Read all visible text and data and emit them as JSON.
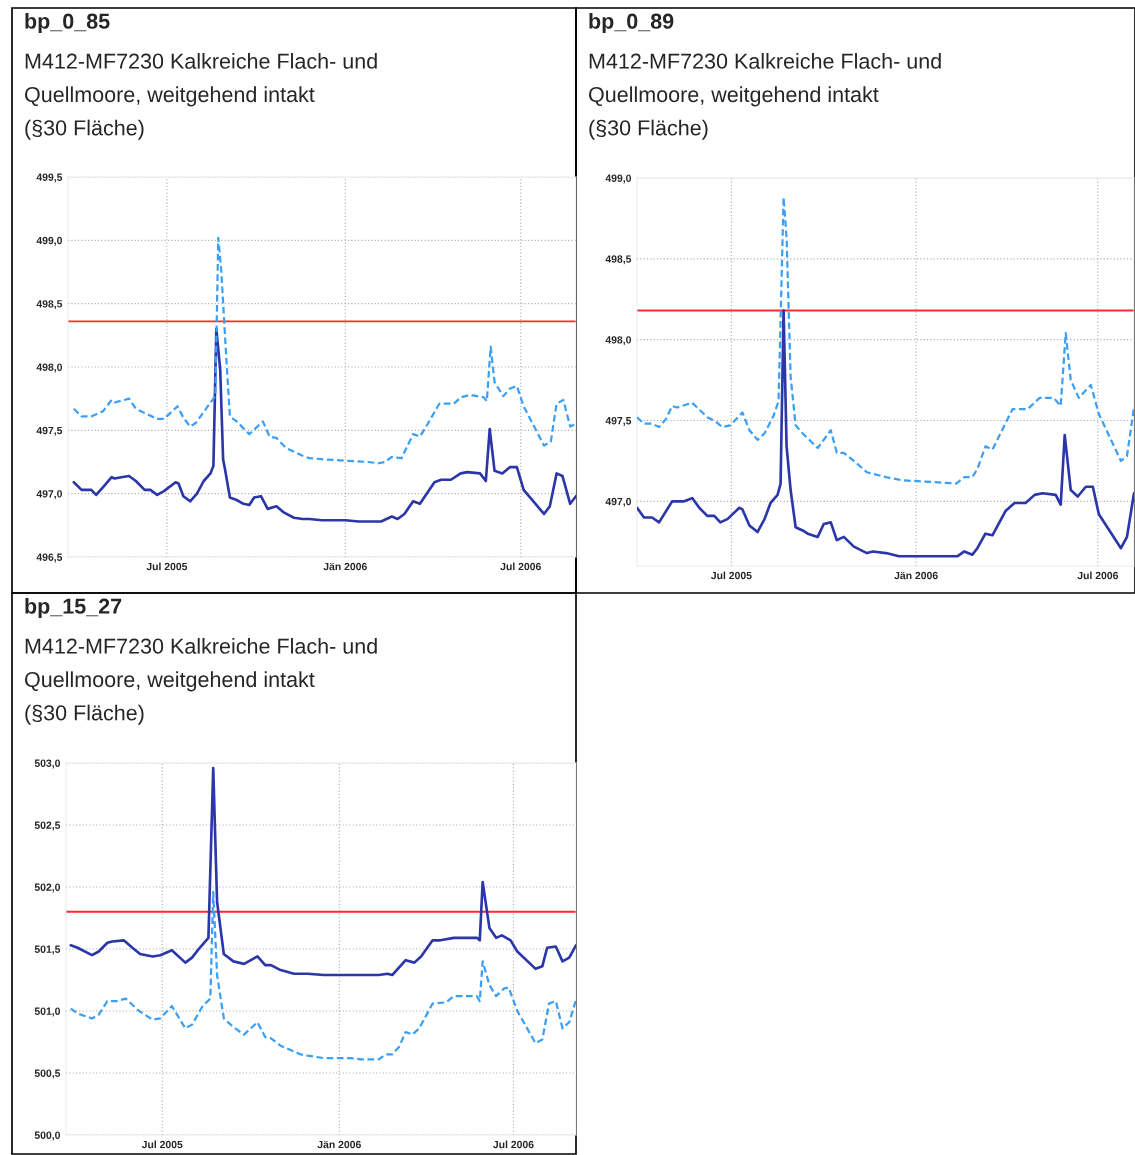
{
  "chart_data": [
    {
      "type": "line",
      "title": "bp_0_85",
      "subtitle": "M412-MF7230 Kalkreiche Flach- und\nQuellmoore, weitgehend intakt\n(§30 Fläche)",
      "xlim": [
        "2005-03-21",
        "2006-08-27"
      ],
      "xticks": [
        {
          "value": "2005-07-01",
          "label": "Jul 2005"
        },
        {
          "value": "2006-01-01",
          "label": "Jän 2006"
        },
        {
          "value": "2006-07-01",
          "label": "Jul 2006"
        }
      ],
      "ylim": [
        496.5,
        499.5
      ],
      "yticks": [
        {
          "value": 496.5,
          "label": "496,5"
        },
        {
          "value": 497.0,
          "label": "497,0"
        },
        {
          "value": 497.5,
          "label": "497,5"
        },
        {
          "value": 498.0,
          "label": "498,0"
        },
        {
          "value": 498.5,
          "label": "498,5"
        },
        {
          "value": 499.0,
          "label": "499,0"
        },
        {
          "value": 499.5,
          "label": "499,5"
        }
      ],
      "grid": true,
      "marker": "none",
      "ref_lines": [
        {
          "axis": "y",
          "value": 498.36,
          "color": "#ff2a2a"
        }
      ],
      "series": [
        {
          "color": "#2b36a8",
          "line_style": "solid",
          "x": [
            "2005-03-27",
            "2005-04-04",
            "2005-04-14",
            "2005-04-19",
            "2005-04-26",
            "2005-05-05",
            "2005-05-08",
            "2005-05-15",
            "2005-05-23",
            "2005-05-30",
            "2005-06-08",
            "2005-06-14",
            "2005-06-21",
            "2005-06-28",
            "2005-07-10",
            "2005-07-13",
            "2005-07-18",
            "2005-07-25",
            "2005-08-01",
            "2005-08-08",
            "2005-08-15",
            "2005-08-18",
            "2005-08-21",
            "2005-08-25",
            "2005-08-28",
            "2005-08-30",
            "2005-09-04",
            "2005-09-11",
            "2005-09-18",
            "2005-09-24",
            "2005-09-29",
            "2005-10-06",
            "2005-10-13",
            "2005-10-22",
            "2005-10-30",
            "2005-11-09",
            "2005-11-18",
            "2005-11-25",
            "2005-12-08",
            "2006-01-01",
            "2006-01-15",
            "2006-02-07",
            "2006-02-18",
            "2006-02-24",
            "2006-03-03",
            "2006-03-12",
            "2006-03-19",
            "2006-04-03",
            "2006-04-10",
            "2006-04-20",
            "2006-04-30",
            "2006-05-07",
            "2006-05-20",
            "2006-05-26",
            "2006-05-30",
            "2006-06-04",
            "2006-06-12",
            "2006-06-20",
            "2006-06-27",
            "2006-07-04",
            "2006-07-25",
            "2006-07-31",
            "2006-08-07",
            "2006-08-13",
            "2006-08-21",
            "2006-08-27"
          ],
          "values": [
            497.09,
            497.03,
            497.03,
            496.99,
            497.05,
            497.13,
            497.12,
            497.13,
            497.14,
            497.1,
            497.03,
            497.03,
            496.99,
            497.02,
            497.09,
            497.08,
            496.98,
            496.94,
            497.0,
            497.1,
            497.16,
            497.22,
            498.3,
            497.98,
            497.27,
            497.19,
            496.97,
            496.95,
            496.92,
            496.91,
            496.97,
            496.98,
            496.88,
            496.9,
            496.85,
            496.81,
            496.8,
            496.8,
            496.79,
            496.79,
            496.78,
            496.78,
            496.82,
            496.8,
            496.84,
            496.94,
            496.92,
            497.09,
            497.11,
            497.11,
            497.16,
            497.17,
            497.16,
            497.1,
            497.51,
            497.18,
            497.16,
            497.21,
            497.21,
            497.03,
            496.84,
            496.9,
            497.16,
            497.14,
            496.92,
            496.98
          ]
        },
        {
          "color": "#3a9ff5",
          "line_style": "dashed",
          "x": [
            "2005-03-27",
            "2005-04-04",
            "2005-04-14",
            "2005-04-26",
            "2005-05-05",
            "2005-05-08",
            "2005-05-23",
            "2005-05-30",
            "2005-06-21",
            "2005-06-28",
            "2005-07-12",
            "2005-07-18",
            "2005-07-25",
            "2005-07-31",
            "2005-08-15",
            "2005-08-20",
            "2005-08-23",
            "2005-08-26",
            "2005-09-01",
            "2005-09-04",
            "2005-09-11",
            "2005-09-24",
            "2005-10-08",
            "2005-10-15",
            "2005-10-22",
            "2005-11-01",
            "2005-11-18",
            "2005-11-25",
            "2005-12-12",
            "2006-01-01",
            "2006-01-25",
            "2006-02-04",
            "2006-02-11",
            "2006-02-18",
            "2006-02-28",
            "2006-03-12",
            "2006-03-19",
            "2006-03-27",
            "2006-04-08",
            "2006-04-23",
            "2006-04-30",
            "2006-05-10",
            "2006-05-24",
            "2006-05-27",
            "2006-05-31",
            "2006-06-04",
            "2006-06-13",
            "2006-06-20",
            "2006-06-27",
            "2006-07-04",
            "2006-07-25",
            "2006-08-01",
            "2006-08-07",
            "2006-08-14",
            "2006-08-21",
            "2006-08-27"
          ],
          "values": [
            497.67,
            497.61,
            497.61,
            497.65,
            497.74,
            497.72,
            497.75,
            497.67,
            497.59,
            497.59,
            497.69,
            497.6,
            497.53,
            497.56,
            497.72,
            497.77,
            499.02,
            498.77,
            497.98,
            497.61,
            497.57,
            497.47,
            497.57,
            497.45,
            497.44,
            497.36,
            497.3,
            497.28,
            497.27,
            497.26,
            497.25,
            497.24,
            497.25,
            497.29,
            497.28,
            497.47,
            497.45,
            497.55,
            497.71,
            497.71,
            497.76,
            497.78,
            497.76,
            497.73,
            498.16,
            497.88,
            497.77,
            497.83,
            497.85,
            497.69,
            497.38,
            497.41,
            497.71,
            497.74,
            497.53,
            497.55
          ]
        }
      ]
    },
    {
      "type": "line",
      "title": "bp_0_89",
      "subtitle": "M412-MF7230 Kalkreiche Flach- und\nQuellmoore, weitgehend intakt\n(§30 Fläche)",
      "xlim": [
        "2005-03-29",
        "2006-08-06"
      ],
      "xticks": [
        {
          "value": "2005-07-01",
          "label": "Jul 2005"
        },
        {
          "value": "2006-01-01",
          "label": "Jän 2006"
        },
        {
          "value": "2006-07-01",
          "label": "Jul 2006"
        }
      ],
      "ylim": [
        496.6,
        499.0
      ],
      "yticks": [
        {
          "value": 497.0,
          "label": "497,0"
        },
        {
          "value": 497.5,
          "label": "497,5"
        },
        {
          "value": 498.0,
          "label": "498,0"
        },
        {
          "value": 498.5,
          "label": "498,5"
        },
        {
          "value": 499.0,
          "label": "499,0"
        }
      ],
      "grid": true,
      "marker": "none",
      "ref_lines": [
        {
          "axis": "y",
          "value": 498.18,
          "color": "#ff2a2a"
        }
      ],
      "series": [
        {
          "color": "#2b36a8",
          "line_style": "solid",
          "x": [
            "2005-03-29",
            "2005-04-05",
            "2005-04-13",
            "2005-04-20",
            "2005-05-03",
            "2005-05-08",
            "2005-05-15",
            "2005-05-23",
            "2005-05-30",
            "2005-06-07",
            "2005-06-14",
            "2005-06-20",
            "2005-06-27",
            "2005-07-09",
            "2005-07-12",
            "2005-07-19",
            "2005-07-27",
            "2005-08-03",
            "2005-08-09",
            "2005-08-16",
            "2005-08-19",
            "2005-08-22",
            "2005-08-25",
            "2005-08-29",
            "2005-09-03",
            "2005-09-10",
            "2005-09-15",
            "2005-09-25",
            "2005-10-01",
            "2005-10-08",
            "2005-10-14",
            "2005-10-21",
            "2005-10-31",
            "2005-11-13",
            "2005-11-19",
            "2005-12-02",
            "2005-12-15",
            "2006-01-06",
            "2006-01-27",
            "2006-02-11",
            "2006-02-18",
            "2006-02-26",
            "2006-03-03",
            "2006-03-11",
            "2006-03-18",
            "2006-03-31",
            "2006-04-09",
            "2006-04-20",
            "2006-04-29",
            "2006-05-07",
            "2006-05-20",
            "2006-05-25",
            "2006-05-29",
            "2006-06-04",
            "2006-06-11",
            "2006-06-19",
            "2006-06-26",
            "2006-07-02",
            "2006-07-24",
            "2006-07-30",
            "2006-08-06"
          ],
          "values": [
            496.96,
            496.9,
            496.9,
            496.87,
            497.0,
            497.0,
            497.0,
            497.02,
            496.96,
            496.91,
            496.91,
            496.87,
            496.89,
            496.96,
            496.95,
            496.85,
            496.81,
            496.89,
            496.99,
            497.04,
            497.11,
            498.18,
            497.34,
            497.07,
            496.84,
            496.82,
            496.8,
            496.78,
            496.86,
            496.87,
            496.76,
            496.78,
            496.72,
            496.68,
            496.69,
            496.68,
            496.66,
            496.66,
            496.66,
            496.66,
            496.69,
            496.67,
            496.71,
            496.8,
            496.79,
            496.94,
            496.99,
            496.99,
            497.04,
            497.05,
            497.04,
            496.98,
            497.41,
            497.07,
            497.03,
            497.09,
            497.09,
            496.92,
            496.71,
            496.78,
            497.05
          ]
        },
        {
          "color": "#3a9ff5",
          "line_style": "dashed",
          "x": [
            "2005-03-29",
            "2005-04-05",
            "2005-04-13",
            "2005-04-20",
            "2005-04-27",
            "2005-05-03",
            "2005-05-08",
            "2005-05-23",
            "2005-06-07",
            "2005-06-14",
            "2005-06-22",
            "2005-06-30",
            "2005-07-12",
            "2005-07-19",
            "2005-07-27",
            "2005-08-03",
            "2005-08-12",
            "2005-08-17",
            "2005-08-22",
            "2005-08-25",
            "2005-08-29",
            "2005-09-03",
            "2005-09-10",
            "2005-09-25",
            "2005-10-08",
            "2005-10-14",
            "2005-10-21",
            "2005-10-31",
            "2005-11-13",
            "2005-11-19",
            "2005-12-02",
            "2005-12-18",
            "2006-01-17",
            "2006-02-10",
            "2006-02-18",
            "2006-02-26",
            "2006-03-03",
            "2006-03-11",
            "2006-03-18",
            "2006-04-07",
            "2006-04-22",
            "2006-05-04",
            "2006-05-18",
            "2006-05-25",
            "2006-05-30",
            "2006-06-04",
            "2006-06-12",
            "2006-06-24",
            "2006-07-02",
            "2006-07-24",
            "2006-07-30",
            "2006-08-06"
          ],
          "values": [
            497.52,
            497.48,
            497.48,
            497.46,
            497.51,
            497.59,
            497.58,
            497.61,
            497.52,
            497.5,
            497.46,
            497.47,
            497.55,
            497.44,
            497.38,
            497.42,
            497.53,
            497.62,
            498.88,
            498.63,
            497.77,
            497.47,
            497.42,
            497.33,
            497.44,
            497.3,
            497.3,
            497.25,
            497.18,
            497.17,
            497.15,
            497.13,
            497.12,
            497.11,
            497.15,
            497.15,
            497.2,
            497.34,
            497.32,
            497.57,
            497.57,
            497.64,
            497.64,
            497.59,
            498.04,
            497.75,
            497.64,
            497.72,
            497.54,
            497.25,
            497.28,
            497.58
          ]
        }
      ]
    },
    {
      "type": "line",
      "title": "bp_15_27",
      "subtitle": "M412-MF7230 Kalkreiche Flach- und\nQuellmoore, weitgehend intakt\n(§30 Fläche)",
      "xlim": [
        "2005-03-23",
        "2006-09-04"
      ],
      "xticks": [
        {
          "value": "2005-07-01",
          "label": "Jul 2005"
        },
        {
          "value": "2006-01-01",
          "label": "Jän 2006"
        },
        {
          "value": "2006-07-01",
          "label": "Jul 2006"
        }
      ],
      "ylim": [
        500.0,
        503.0
      ],
      "yticks": [
        {
          "value": 500.0,
          "label": "500,0"
        },
        {
          "value": 500.5,
          "label": "500,5"
        },
        {
          "value": 501.0,
          "label": "501,0"
        },
        {
          "value": 501.5,
          "label": "501,5"
        },
        {
          "value": 502.0,
          "label": "502,0"
        },
        {
          "value": 502.5,
          "label": "502,5"
        },
        {
          "value": 503.0,
          "label": "503,0"
        }
      ],
      "grid": true,
      "marker": "none",
      "ref_lines": [
        {
          "axis": "y",
          "value": 501.8,
          "color": "#ff2a2a"
        }
      ],
      "series": [
        {
          "color": "#2b36a8",
          "line_style": "solid",
          "x": [
            "2005-03-28",
            "2005-04-04",
            "2005-04-19",
            "2005-04-26",
            "2005-05-05",
            "2005-05-10",
            "2005-05-22",
            "2005-05-31",
            "2005-06-08",
            "2005-06-21",
            "2005-06-29",
            "2005-07-11",
            "2005-07-25",
            "2005-08-01",
            "2005-08-09",
            "2005-08-18",
            "2005-08-23",
            "2005-08-27",
            "2005-09-03",
            "2005-09-13",
            "2005-09-24",
            "2005-10-08",
            "2005-10-16",
            "2005-10-22",
            "2005-11-01",
            "2005-11-15",
            "2005-11-22",
            "2005-11-29",
            "2005-12-16",
            "2006-01-06",
            "2006-01-20",
            "2006-02-11",
            "2006-02-20",
            "2006-02-25",
            "2006-03-11",
            "2006-03-20",
            "2006-03-27",
            "2006-04-08",
            "2006-04-16",
            "2006-04-30",
            "2006-05-24",
            "2006-05-27",
            "2006-05-30",
            "2006-06-06",
            "2006-06-13",
            "2006-06-19",
            "2006-06-28",
            "2006-07-05",
            "2006-07-24",
            "2006-07-31",
            "2006-08-05",
            "2006-08-14",
            "2006-08-21",
            "2006-08-28",
            "2006-09-04"
          ],
          "values": [
            501.53,
            501.51,
            501.45,
            501.48,
            501.55,
            501.56,
            501.57,
            501.51,
            501.46,
            501.44,
            501.45,
            501.49,
            501.39,
            501.43,
            501.51,
            501.59,
            502.96,
            501.88,
            501.46,
            501.4,
            501.38,
            501.44,
            501.37,
            501.37,
            501.33,
            501.3,
            501.3,
            501.3,
            501.29,
            501.29,
            501.29,
            501.29,
            501.3,
            501.29,
            501.41,
            501.39,
            501.44,
            501.57,
            501.57,
            501.59,
            501.59,
            501.57,
            502.04,
            501.67,
            501.59,
            501.61,
            501.57,
            501.48,
            501.34,
            501.36,
            501.51,
            501.52,
            501.4,
            501.43,
            501.53
          ]
        },
        {
          "color": "#3a9ff5",
          "line_style": "dashed",
          "x": [
            "2005-03-28",
            "2005-04-04",
            "2005-04-19",
            "2005-04-26",
            "2005-05-05",
            "2005-05-15",
            "2005-05-24",
            "2005-06-07",
            "2005-06-21",
            "2005-06-29",
            "2005-07-11",
            "2005-07-25",
            "2005-08-01",
            "2005-08-12",
            "2005-08-20",
            "2005-08-23",
            "2005-08-27",
            "2005-09-03",
            "2005-09-13",
            "2005-09-24",
            "2005-10-08",
            "2005-10-16",
            "2005-10-22",
            "2005-11-01",
            "2005-11-22",
            "2005-11-29",
            "2005-12-16",
            "2006-01-13",
            "2006-01-23",
            "2006-02-11",
            "2006-02-18",
            "2006-02-25",
            "2006-03-04",
            "2006-03-11",
            "2006-03-18",
            "2006-03-25",
            "2006-04-08",
            "2006-04-22",
            "2006-04-30",
            "2006-05-24",
            "2006-05-27",
            "2006-05-30",
            "2006-06-06",
            "2006-06-13",
            "2006-06-21",
            "2006-06-26",
            "2006-07-05",
            "2006-07-24",
            "2006-07-31",
            "2006-08-07",
            "2006-08-14",
            "2006-08-21",
            "2006-08-28",
            "2006-09-04"
          ],
          "values": [
            501.02,
            500.98,
            500.94,
            500.97,
            501.08,
            501.08,
            501.1,
            501.0,
            500.93,
            500.94,
            501.04,
            500.86,
            500.89,
            501.04,
            501.1,
            501.96,
            501.29,
            500.94,
            500.87,
            500.81,
            500.91,
            500.79,
            500.78,
            500.72,
            500.65,
            500.64,
            500.62,
            500.62,
            500.61,
            500.61,
            500.65,
            500.65,
            500.71,
            500.83,
            500.81,
            500.86,
            501.06,
            501.07,
            501.12,
            501.12,
            501.08,
            501.4,
            501.21,
            501.12,
            501.18,
            501.19,
            501.0,
            500.74,
            500.77,
            501.06,
            501.08,
            500.86,
            500.91,
            501.09
          ]
        }
      ]
    }
  ]
}
